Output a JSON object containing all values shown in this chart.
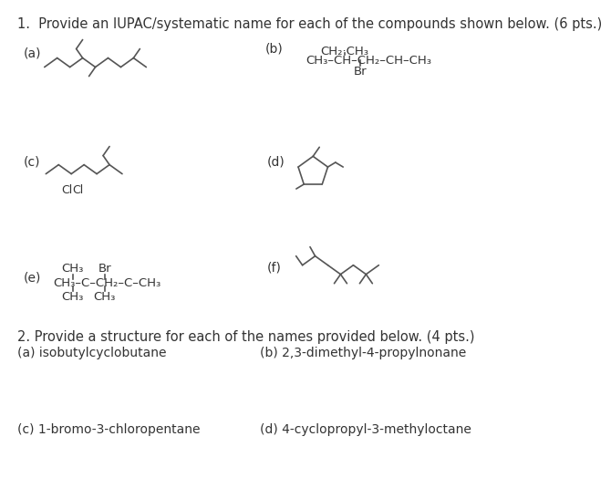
{
  "bg": "#ffffff",
  "lc": "#555555",
  "tc": "#333333",
  "title1": "1.  Provide an IUPAC/systematic name for each of the compounds shown below. (6 pts.)",
  "title2": "2. Provide a structure for each of the names provided below. (4 pts.)",
  "q2a": "(a) isobutylcyclobutane",
  "q2b": "(b) 2,3-dimethyl-4-propylnonane",
  "q2c": "(c) 1-bromo-3-chloropentane",
  "q2d": "(d) 4-cyclopropyl-3-methyloctane",
  "b_top": "CH₂·CH₃",
  "b_main": "CH₃–CH–CH₂–CH–CH₃",
  "b_br": "Br",
  "e_top1": "CH₃",
  "e_top2": "Br",
  "e_main": "CH₃–C–CH₂–C–CH₃",
  "e_bot1": "CH₃",
  "e_bot2": "CH₃",
  "la": "(a)",
  "lb": "(b)",
  "lc_lbl": "(c)",
  "ld": "(d)",
  "le": "(e)",
  "lf": "(f)"
}
